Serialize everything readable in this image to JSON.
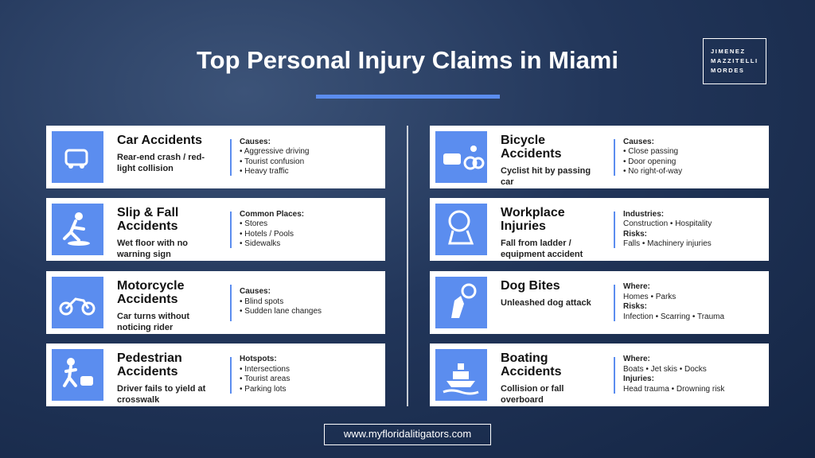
{
  "header": {
    "title": "Top Personal Injury Claims in Miami"
  },
  "logo": {
    "lines": [
      "JIMENEZ",
      "MAZZITELLI",
      "MORDES"
    ]
  },
  "cards": [
    {
      "title": "Car Accidents",
      "description": "Rear-end crash / red-light collision",
      "details": [
        {
          "label": "Causes:",
          "items": [
            "Aggressive driving",
            "Tourist confusion",
            "Heavy traffic"
          ]
        }
      ]
    },
    {
      "title": "Slip & Fall Accidents",
      "description": "Wet floor with no warning sign",
      "details": [
        {
          "label": "Common Places:",
          "items": [
            "Stores",
            "Hotels / Pools",
            "Sidewalks"
          ]
        }
      ]
    },
    {
      "title": "Motorcycle Accidents",
      "description": "Car turns without noticing rider",
      "details": [
        {
          "label": "Causes:",
          "items": [
            "Blind spots",
            "Sudden lane changes"
          ]
        }
      ]
    },
    {
      "title": "Pedestrian Accidents",
      "description": "Driver fails to yield at crosswalk",
      "details": [
        {
          "label": "Hotspots:",
          "items": [
            "Intersections",
            "Tourist areas",
            "Parking lots"
          ]
        }
      ]
    },
    {
      "title": "Bicycle Accidents",
      "description": "Cyclist hit by passing car",
      "details": [
        {
          "label": "Causes:",
          "items": [
            "Close passing",
            "Door opening",
            "No right-of-way"
          ]
        }
      ]
    },
    {
      "title": "Workplace Injuries",
      "description": "Fall from ladder / equipment accident",
      "details": [
        {
          "label": "Industries:",
          "lines": [
            "Construction • Hospitality"
          ]
        },
        {
          "label": "Risks:",
          "lines": [
            "Falls • Machinery injuries"
          ]
        }
      ]
    },
    {
      "title": "Dog Bites",
      "description": "Unleashed dog attack",
      "details": [
        {
          "label": "Where:",
          "lines": [
            "Homes • Parks"
          ]
        },
        {
          "label": "Risks:",
          "lines": [
            "Infection • Scarring • Trauma"
          ]
        }
      ]
    },
    {
      "title": "Boating Accidents",
      "description": "Collision or fall overboard",
      "details": [
        {
          "label": "Where:",
          "lines": [
            "Boats • Jet skis • Docks"
          ]
        },
        {
          "label": "Injuries:",
          "lines": [
            "Head trauma • Drowning risk"
          ]
        }
      ]
    }
  ],
  "footer": {
    "url": "www.myfloridalitigators.com"
  }
}
